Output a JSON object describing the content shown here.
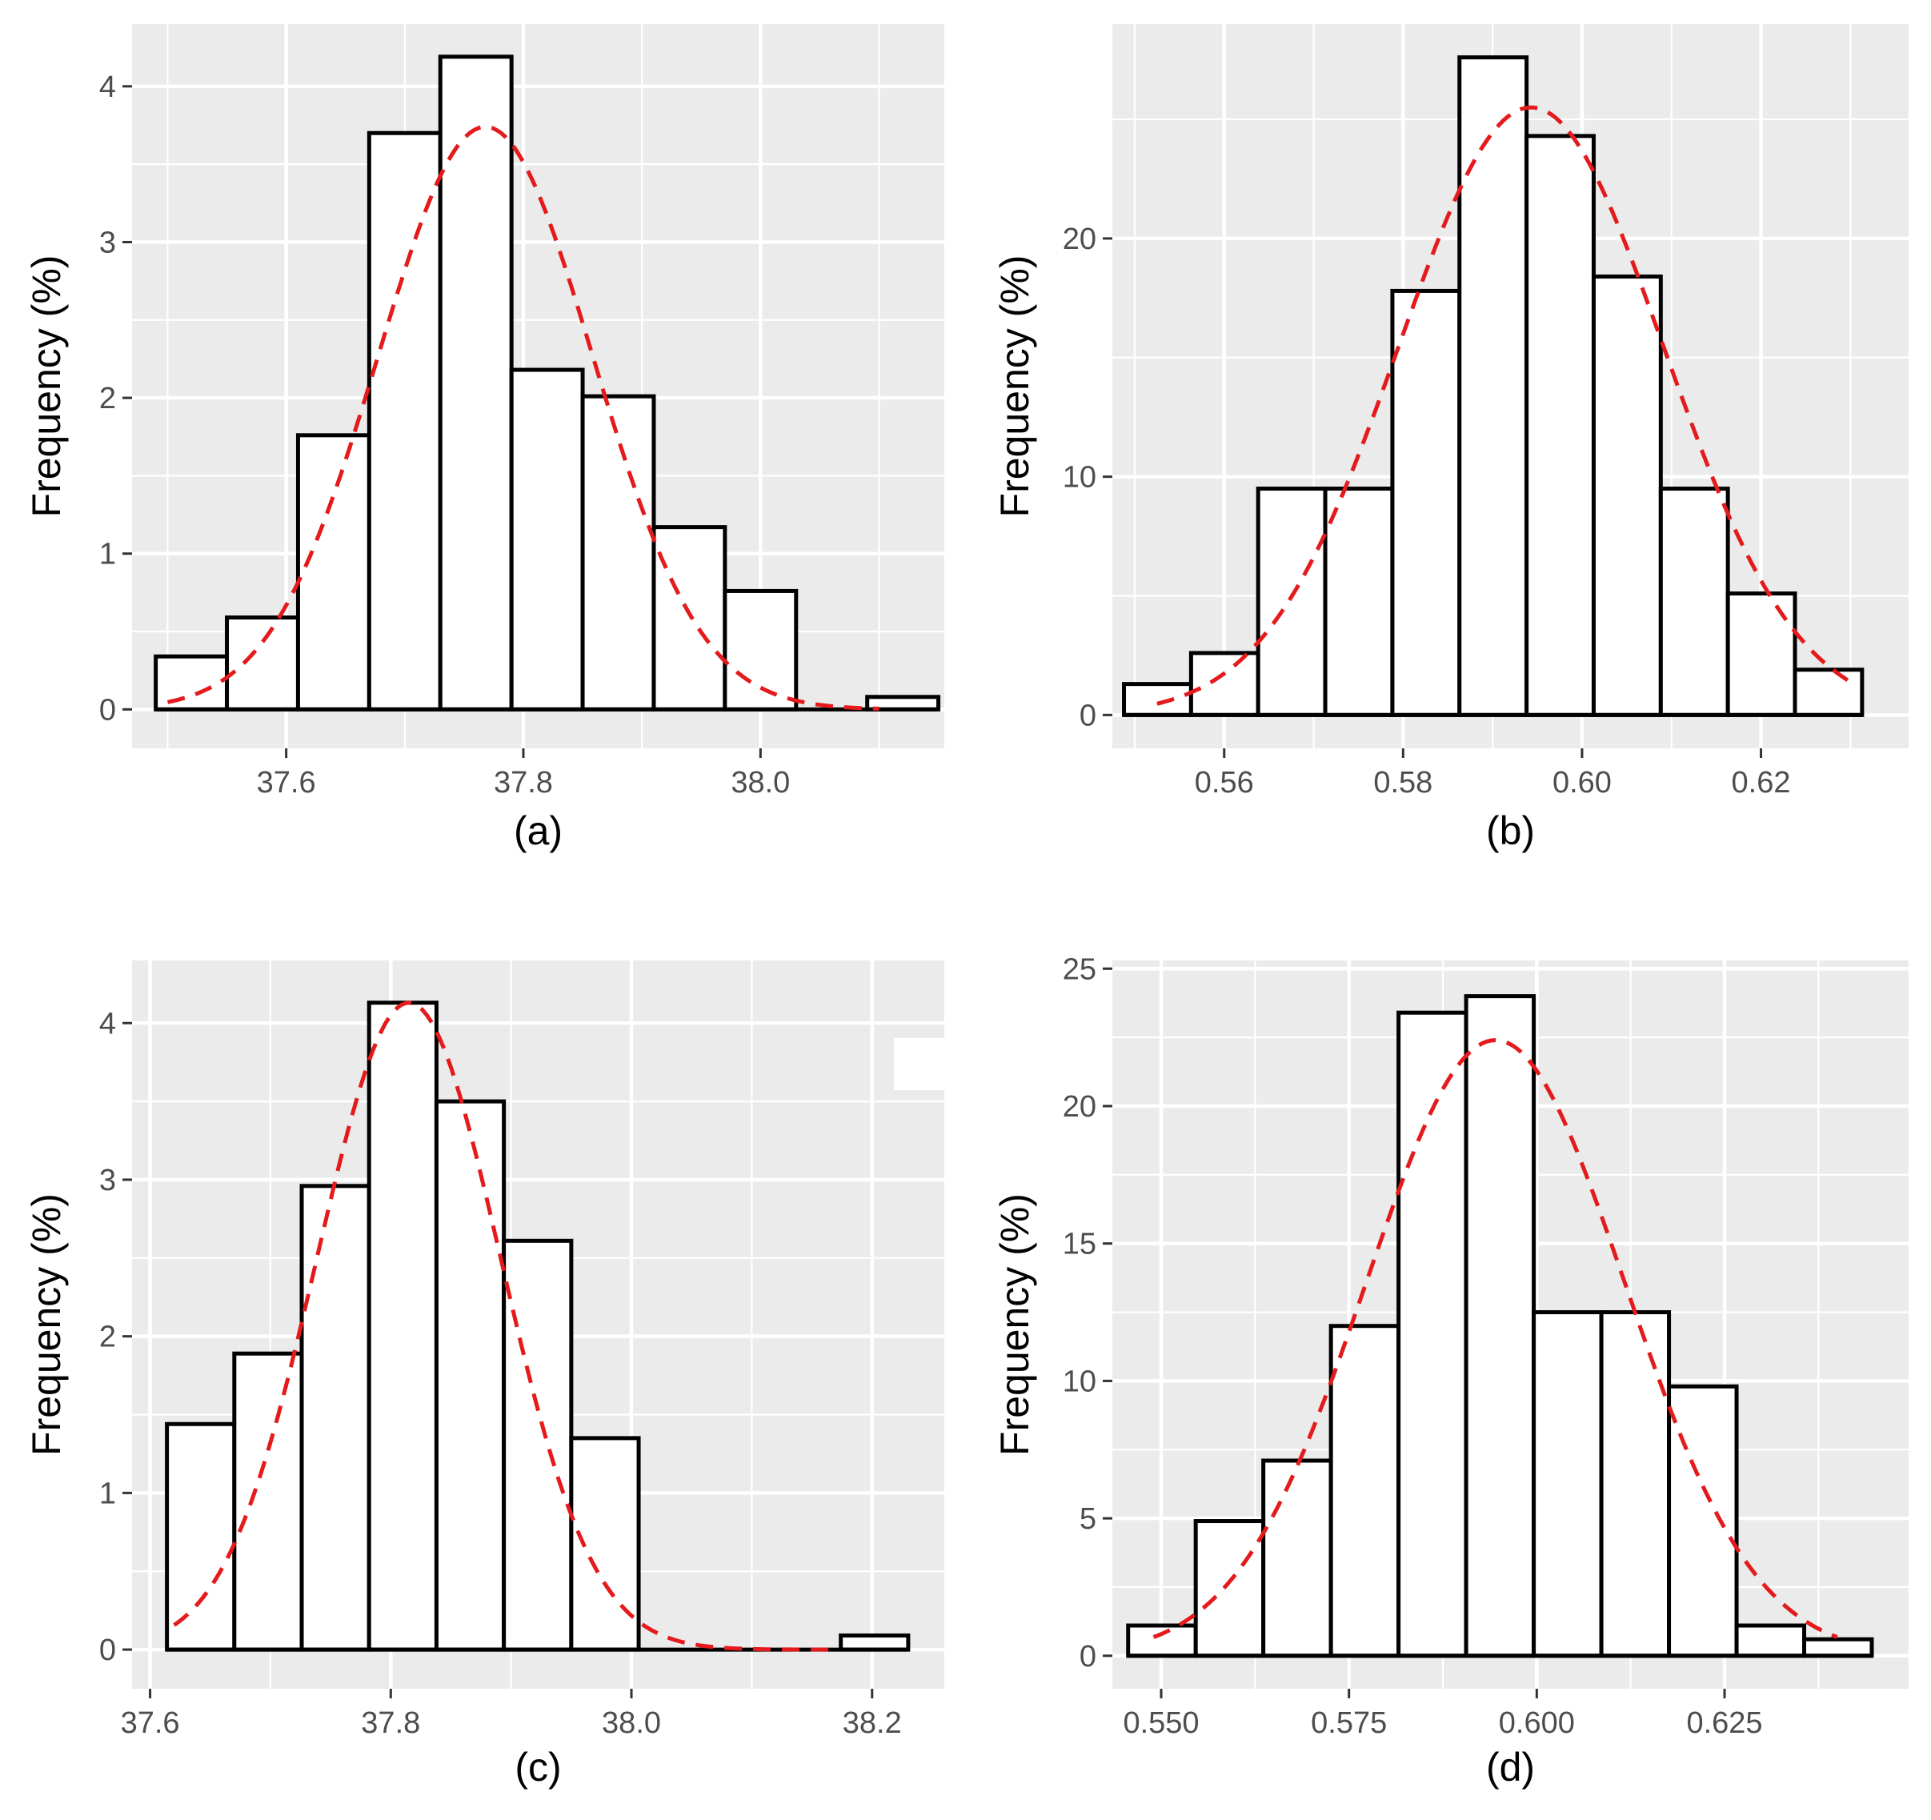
{
  "colors": {
    "panel_background": "#ebebeb",
    "gridline": "#ffffff",
    "bar_fill": "#ffffff",
    "bar_outline": "#000000",
    "curve": "#e41a1c",
    "tick_label": "#4d4d4d"
  },
  "chart_data": [
    {
      "id": "a",
      "type": "bar",
      "title": "",
      "panel_label": "(a)",
      "xlabel": "",
      "ylabel": "Frequency (%)",
      "xlim": [
        37.47,
        38.155
      ],
      "ylim": [
        -0.25,
        4.4
      ],
      "xticks": [
        37.6,
        37.8,
        38.0
      ],
      "xtick_labels": [
        "37.6",
        "37.8",
        "38.0"
      ],
      "xminor": [
        37.5,
        37.7,
        37.9,
        38.1
      ],
      "yticks": [
        0,
        1,
        2,
        3,
        4
      ],
      "ytick_labels": [
        "0",
        "1",
        "2",
        "3",
        "4"
      ],
      "yminor": [
        0.5,
        1.5,
        2.5,
        3.5
      ],
      "bins": [
        {
          "x0": 37.49,
          "x1": 37.55,
          "value": 0.34
        },
        {
          "x0": 37.55,
          "x1": 37.61,
          "value": 0.59
        },
        {
          "x0": 37.61,
          "x1": 37.67,
          "value": 1.76
        },
        {
          "x0": 37.67,
          "x1": 37.73,
          "value": 3.7
        },
        {
          "x0": 37.73,
          "x1": 37.79,
          "value": 4.19
        },
        {
          "x0": 37.79,
          "x1": 37.85,
          "value": 2.18
        },
        {
          "x0": 37.85,
          "x1": 37.91,
          "value": 2.01
        },
        {
          "x0": 37.91,
          "x1": 37.97,
          "value": 1.17
        },
        {
          "x0": 37.97,
          "x1": 38.03,
          "value": 0.76
        },
        {
          "x0": 38.03,
          "x1": 38.09,
          "value": 0
        },
        {
          "x0": 38.09,
          "x1": 38.15,
          "value": 0.08
        }
      ],
      "normal_curve": {
        "mean": 37.768,
        "sd": 0.0905,
        "peak": 3.74,
        "x_start": 37.5,
        "x_end": 38.1
      }
    },
    {
      "id": "b",
      "type": "bar",
      "title": "",
      "panel_label": "(b)",
      "xlabel": "",
      "ylabel": "Frequency (%)",
      "xlim": [
        0.5475,
        0.6365
      ],
      "ylim": [
        -1.4,
        29.0
      ],
      "xticks": [
        0.56,
        0.58,
        0.6,
        0.62
      ],
      "xtick_labels": [
        "0.56",
        "0.58",
        "0.60",
        "0.62"
      ],
      "xminor": [
        0.55,
        0.57,
        0.59,
        0.61,
        0.63
      ],
      "yticks": [
        0,
        10,
        20
      ],
      "ytick_labels": [
        "0",
        "10",
        "20"
      ],
      "yminor": [
        5,
        15,
        25
      ],
      "bins": [
        {
          "x0": 0.5488,
          "x1": 0.5563,
          "value": 1.3
        },
        {
          "x0": 0.5563,
          "x1": 0.5638,
          "value": 2.6
        },
        {
          "x0": 0.5638,
          "x1": 0.5713,
          "value": 9.5
        },
        {
          "x0": 0.5713,
          "x1": 0.5788,
          "value": 9.5
        },
        {
          "x0": 0.5788,
          "x1": 0.5863,
          "value": 17.8
        },
        {
          "x0": 0.5863,
          "x1": 0.5938,
          "value": 27.6
        },
        {
          "x0": 0.5938,
          "x1": 0.6013,
          "value": 24.3
        },
        {
          "x0": 0.6013,
          "x1": 0.6088,
          "value": 18.4
        },
        {
          "x0": 0.6088,
          "x1": 0.6163,
          "value": 9.5
        },
        {
          "x0": 0.6163,
          "x1": 0.6238,
          "value": 5.1
        },
        {
          "x0": 0.6238,
          "x1": 0.6313,
          "value": 1.9
        }
      ],
      "normal_curve": {
        "mean": 0.5943,
        "sd": 0.0148,
        "peak": 25.5,
        "x_start": 0.5525,
        "x_end": 0.63
      }
    },
    {
      "id": "c",
      "type": "bar",
      "title": "",
      "panel_label": "(c)",
      "xlabel": "",
      "ylabel": "Frequency (%)",
      "xlim": [
        37.585,
        38.26
      ],
      "ylim": [
        -0.25,
        4.4
      ],
      "xticks": [
        37.6,
        37.8,
        38.0,
        38.2
      ],
      "xtick_labels": [
        "37.6",
        "37.8",
        "38.0",
        "38.2"
      ],
      "xminor": [
        37.7,
        37.9,
        38.1
      ],
      "yticks": [
        0,
        1,
        2,
        3,
        4
      ],
      "ytick_labels": [
        "0",
        "1",
        "2",
        "3",
        "4"
      ],
      "yminor": [
        0.5,
        1.5,
        2.5,
        3.5
      ],
      "bins": [
        {
          "x0": 37.614,
          "x1": 37.67,
          "value": 1.44
        },
        {
          "x0": 37.67,
          "x1": 37.726,
          "value": 1.89
        },
        {
          "x0": 37.726,
          "x1": 37.782,
          "value": 2.96
        },
        {
          "x0": 37.782,
          "x1": 37.838,
          "value": 4.13
        },
        {
          "x0": 37.838,
          "x1": 37.894,
          "value": 3.5
        },
        {
          "x0": 37.894,
          "x1": 37.95,
          "value": 2.61
        },
        {
          "x0": 37.95,
          "x1": 38.006,
          "value": 1.35
        },
        {
          "x0": 38.006,
          "x1": 38.062,
          "value": 0
        },
        {
          "x0": 38.062,
          "x1": 38.118,
          "value": 0
        },
        {
          "x0": 38.118,
          "x1": 38.174,
          "value": 0
        },
        {
          "x0": 38.174,
          "x1": 38.23,
          "value": 0.09
        }
      ],
      "normal_curve": {
        "mean": 37.815,
        "sd": 0.0762,
        "peak": 4.13,
        "x_start": 37.62,
        "x_end": 38.17
      }
    },
    {
      "id": "d",
      "type": "bar",
      "title": "",
      "panel_label": "(d)",
      "xlabel": "",
      "ylabel": "Frequency (%)",
      "xlim": [
        0.5435,
        0.6495
      ],
      "ylim": [
        -1.2,
        25.3
      ],
      "xticks": [
        0.55,
        0.575,
        0.6,
        0.625
      ],
      "xtick_labels": [
        "0.550",
        "0.575",
        "0.600",
        "0.625"
      ],
      "xminor": [
        0.5625,
        0.5875,
        0.6125,
        0.6375
      ],
      "yticks": [
        0,
        5,
        10,
        15,
        20,
        25
      ],
      "ytick_labels": [
        "0",
        "5",
        "10",
        "15",
        "20",
        "25"
      ],
      "yminor": [
        2.5,
        7.5,
        12.5,
        17.5,
        22.5
      ],
      "bins": [
        {
          "x0": 0.5456,
          "x1": 0.5546,
          "value": 1.1
        },
        {
          "x0": 0.5546,
          "x1": 0.5636,
          "value": 4.9
        },
        {
          "x0": 0.5636,
          "x1": 0.5726,
          "value": 7.1
        },
        {
          "x0": 0.5726,
          "x1": 0.5816,
          "value": 12.0
        },
        {
          "x0": 0.5816,
          "x1": 0.5906,
          "value": 23.4
        },
        {
          "x0": 0.5906,
          "x1": 0.5996,
          "value": 24.0
        },
        {
          "x0": 0.5996,
          "x1": 0.6086,
          "value": 12.5
        },
        {
          "x0": 0.6086,
          "x1": 0.6176,
          "value": 12.5
        },
        {
          "x0": 0.6176,
          "x1": 0.6266,
          "value": 9.8
        },
        {
          "x0": 0.6266,
          "x1": 0.6356,
          "value": 1.1
        },
        {
          "x0": 0.6356,
          "x1": 0.6446,
          "value": 0.6
        }
      ],
      "normal_curve": {
        "mean": 0.5945,
        "sd": 0.0172,
        "peak": 22.4,
        "x_start": 0.549,
        "x_end": 0.64
      }
    }
  ]
}
